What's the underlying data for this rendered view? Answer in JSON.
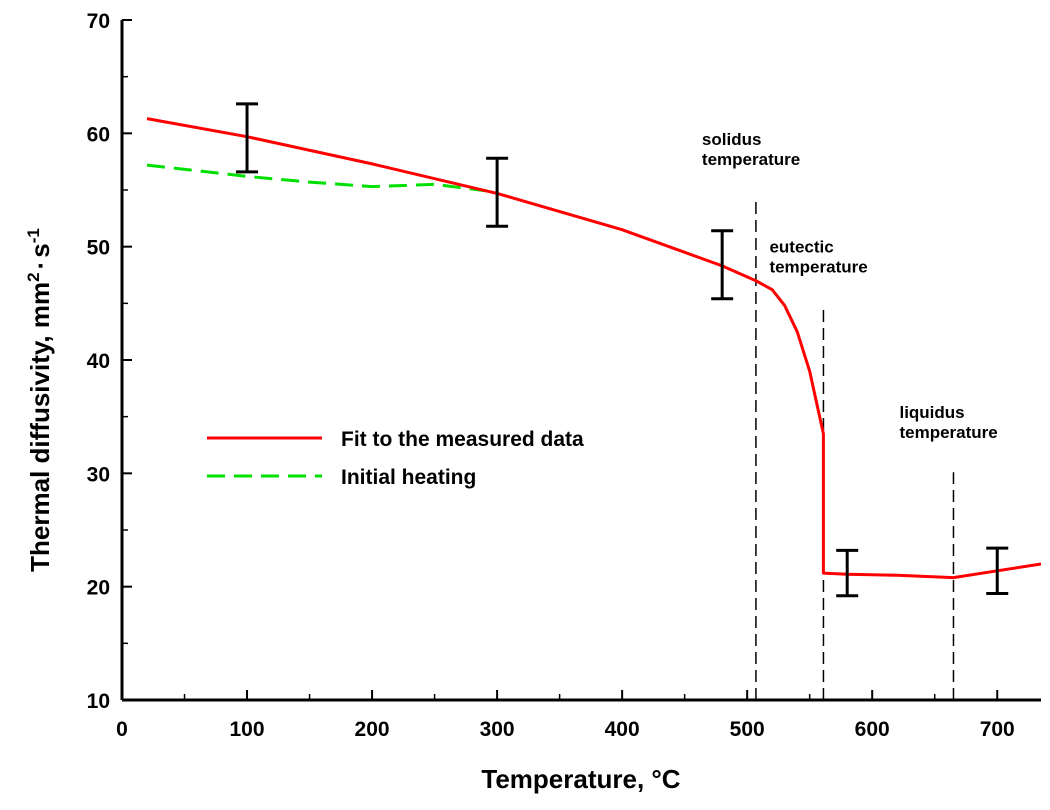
{
  "chart_data": {
    "type": "line",
    "xlabel": "Temperature, °C",
    "ylabel": "Thermal diffusivity, mm",
    "ylabel_sup1": "2",
    "ylabel_dot": "·",
    "ylabel_s": "s",
    "ylabel_sup2": "-1",
    "xlim": [
      0,
      735
    ],
    "ylim": [
      10,
      70
    ],
    "xticks": [
      0,
      100,
      200,
      300,
      400,
      500,
      600,
      700
    ],
    "yticks": [
      10,
      20,
      30,
      40,
      50,
      60,
      70
    ],
    "grid": false,
    "legend_position": "center-left",
    "series": [
      {
        "name": "Fit to the measured data",
        "color": "#ff0000",
        "style": "solid",
        "points": [
          [
            20,
            61.3
          ],
          [
            100,
            59.7
          ],
          [
            200,
            57.3
          ],
          [
            300,
            54.7
          ],
          [
            400,
            51.5
          ],
          [
            450,
            49.5
          ],
          [
            480,
            48.3
          ],
          [
            507,
            47.0
          ],
          [
            520,
            46.2
          ],
          [
            530,
            44.8
          ],
          [
            540,
            42.5
          ],
          [
            550,
            39.0
          ],
          [
            557,
            35.5
          ],
          [
            561,
            33.5
          ],
          [
            561,
            21.2
          ],
          [
            580,
            21.1
          ],
          [
            620,
            21.0
          ],
          [
            665,
            20.8
          ],
          [
            700,
            21.4
          ],
          [
            735,
            22.0
          ]
        ]
      },
      {
        "name": "Initial heating",
        "color": "#00e000",
        "style": "dashed",
        "points": [
          [
            20,
            57.2
          ],
          [
            60,
            56.7
          ],
          [
            100,
            56.2
          ],
          [
            150,
            55.7
          ],
          [
            200,
            55.3
          ],
          [
            250,
            55.5
          ],
          [
            300,
            54.8
          ]
        ]
      }
    ],
    "error_bars": [
      {
        "x": 100,
        "low": 56.6,
        "high": 62.6
      },
      {
        "x": 300,
        "low": 51.8,
        "high": 57.8
      },
      {
        "x": 480,
        "low": 45.4,
        "high": 51.4
      },
      {
        "x": 580,
        "low": 19.2,
        "high": 23.2
      },
      {
        "x": 700,
        "low": 19.4,
        "high": 23.4
      }
    ],
    "vertical_lines": [
      {
        "x": 507,
        "top": 54.2,
        "label1": "solidus",
        "label2": "temperature"
      },
      {
        "x": 561,
        "top": 44.7,
        "label1": "eutectic",
        "label2": "temperature"
      },
      {
        "x": 665,
        "top": 30.1,
        "label1": "liquidus",
        "label2": "temperature"
      }
    ]
  }
}
